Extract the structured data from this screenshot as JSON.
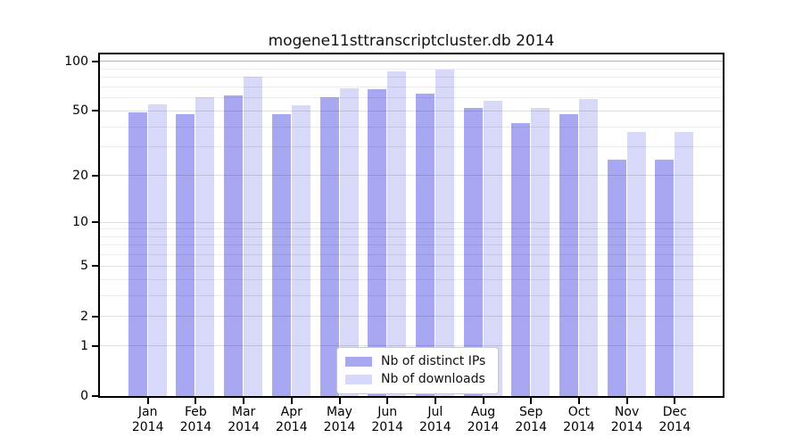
{
  "title": "mogene11sttranscriptcluster.db 2014",
  "colors": {
    "ips": "#a7a7f2",
    "downloads": "#d8d8f8",
    "axis": "#000000",
    "legend_border": "#c8c8c8"
  },
  "legend": {
    "items": [
      {
        "label": "Nb of distinct IPs",
        "series": "ips"
      },
      {
        "label": "Nb of downloads",
        "series": "downloads"
      }
    ]
  },
  "y_axis": {
    "tick_labels": [
      "100",
      "50",
      "20",
      "10",
      "5",
      "2",
      "1",
      "0"
    ],
    "tick_values": [
      100,
      50,
      20,
      10,
      5,
      2,
      1,
      0
    ],
    "minor_values": [
      3,
      4,
      6,
      7,
      8,
      9,
      30,
      40,
      60,
      70,
      80,
      90
    ]
  },
  "x_axis": {
    "months": [
      "Jan",
      "Feb",
      "Mar",
      "Apr",
      "May",
      "Jun",
      "Jul",
      "Aug",
      "Sep",
      "Oct",
      "Nov",
      "Dec"
    ],
    "year": "2014"
  },
  "chart_data": {
    "type": "bar",
    "title": "mogene11sttranscriptcluster.db 2014",
    "categories": [
      "Jan 2014",
      "Feb 2014",
      "Mar 2014",
      "Apr 2014",
      "May 2014",
      "Jun 2014",
      "Jul 2014",
      "Aug 2014",
      "Sep 2014",
      "Oct 2014",
      "Nov 2014",
      "Dec 2014"
    ],
    "series": [
      {
        "name": "Nb of distinct IPs",
        "color": "#a7a7f2",
        "values": [
          49,
          48,
          62,
          48,
          61,
          68,
          64,
          52,
          42,
          48,
          25,
          25
        ]
      },
      {
        "name": "Nb of downloads",
        "color": "#d8d8f8",
        "values": [
          55,
          61,
          81,
          54,
          69,
          87,
          89,
          58,
          52,
          59,
          37,
          37
        ]
      }
    ],
    "xlabel": "",
    "ylabel": "",
    "yscale": "log1p",
    "yticks": [
      0,
      1,
      2,
      5,
      10,
      20,
      50,
      100
    ],
    "ylim": [
      0,
      110
    ],
    "grid": true,
    "legend_position": "inside-bottom-center"
  }
}
